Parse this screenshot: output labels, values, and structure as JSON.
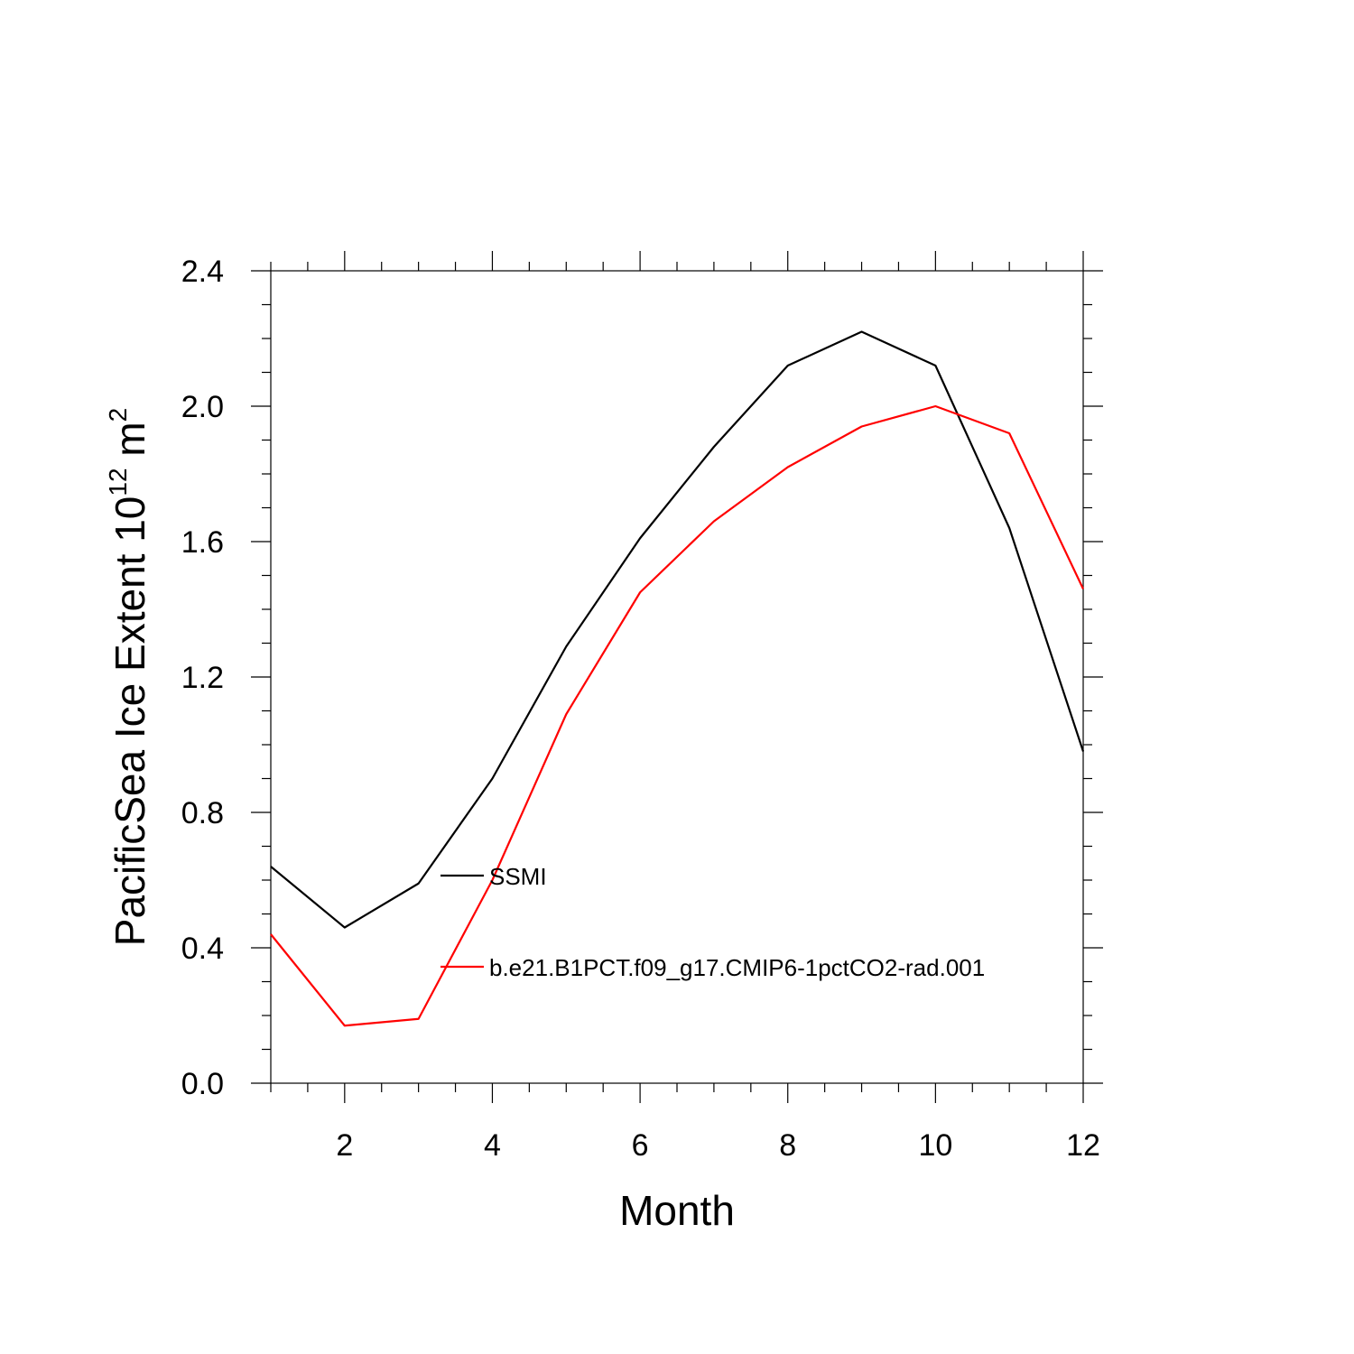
{
  "chart_data": {
    "type": "line",
    "title": "",
    "xlabel": "Month",
    "ylabel_main": "PacificSea Ice Extent 10",
    "ylabel_sup1": "12",
    "ylabel_mid": " m",
    "ylabel_sup2": "2",
    "xlim": [
      1,
      12
    ],
    "ylim": [
      0,
      2.4
    ],
    "x_ticks": [
      2,
      4,
      6,
      8,
      10,
      12
    ],
    "x_tick_labels": [
      "2",
      "4",
      "6",
      "8",
      "10",
      "12"
    ],
    "y_ticks": [
      0,
      0.4,
      0.8,
      1.2,
      1.6,
      2.0,
      2.4
    ],
    "y_tick_labels": [
      "0.0",
      "0.4",
      "0.8",
      "1.2",
      "1.6",
      "2.0",
      "2.4"
    ],
    "x": [
      1,
      2,
      3,
      4,
      5,
      6,
      7,
      8,
      9,
      10,
      11,
      12
    ],
    "series": [
      {
        "name": "SSMI",
        "color": "#000000",
        "values": [
          0.64,
          0.46,
          0.59,
          0.9,
          1.29,
          1.61,
          1.88,
          2.12,
          2.22,
          2.12,
          1.64,
          0.98
        ]
      },
      {
        "name": "b.e21.B1PCT.f09_g17.CMIP6-1pctCO2-rad.001",
        "color": "#ff0000",
        "values": [
          0.44,
          0.17,
          0.19,
          0.6,
          1.09,
          1.45,
          1.66,
          1.82,
          1.94,
          2.0,
          1.92,
          1.46
        ]
      }
    ],
    "legend_placement": "inside-center-left",
    "grid": false
  }
}
